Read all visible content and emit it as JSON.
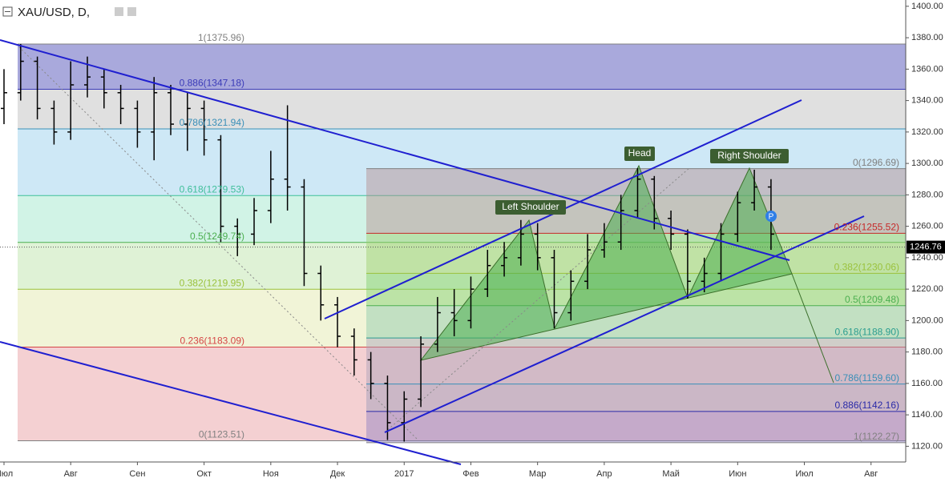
{
  "chart_data": {
    "type": "ohlc",
    "title": "XAU/USD, D,",
    "color": "#000000",
    "x": [
      0,
      0.25,
      0.5,
      0.75,
      1,
      1.25,
      1.5,
      1.75,
      2,
      2.25,
      2.5,
      2.75,
      3,
      3.25,
      3.5,
      3.75,
      4,
      4.25,
      4.5,
      4.75,
      5,
      5.25,
      5.5,
      5.75,
      6,
      6.25,
      6.5,
      6.75,
      7,
      7.25,
      7.5,
      7.75,
      8,
      8.25,
      8.5,
      8.75,
      9,
      9.25,
      9.5,
      9.75,
      10,
      10.25,
      10.5,
      10.75,
      11,
      11.25,
      11.5
    ],
    "open": [
      1335,
      1345,
      1365,
      1335,
      1320,
      1350,
      1355,
      1345,
      1335,
      1320,
      1345,
      1325,
      1335,
      1315,
      1260,
      1255,
      1270,
      1290,
      1285,
      1230,
      1210,
      1190,
      1175,
      1160,
      1135,
      1150,
      1185,
      1205,
      1200,
      1220,
      1235,
      1240,
      1255,
      1240,
      1205,
      1225,
      1245,
      1250,
      1270,
      1290,
      1265,
      1255,
      1225,
      1230,
      1255,
      1275,
      1285
    ],
    "high": [
      1360,
      1376,
      1368,
      1340,
      1365,
      1368,
      1360,
      1350,
      1340,
      1355,
      1350,
      1345,
      1340,
      1318,
      1265,
      1278,
      1308,
      1337,
      1290,
      1235,
      1215,
      1195,
      1180,
      1165,
      1155,
      1190,
      1215,
      1220,
      1228,
      1245,
      1250,
      1264,
      1262,
      1245,
      1232,
      1255,
      1262,
      1280,
      1297,
      1292,
      1270,
      1258,
      1240,
      1262,
      1282,
      1296,
      1290
    ],
    "low": [
      1325,
      1340,
      1328,
      1312,
      1315,
      1342,
      1335,
      1325,
      1310,
      1302,
      1318,
      1308,
      1305,
      1250,
      1241,
      1248,
      1262,
      1270,
      1222,
      1200,
      1183,
      1165,
      1150,
      1124,
      1123,
      1145,
      1180,
      1190,
      1195,
      1215,
      1228,
      1235,
      1232,
      1195,
      1200,
      1220,
      1240,
      1245,
      1265,
      1258,
      1245,
      1214,
      1218,
      1225,
      1250,
      1270,
      1245
    ],
    "close": [
      1345,
      1365,
      1335,
      1320,
      1350,
      1355,
      1345,
      1335,
      1320,
      1345,
      1325,
      1335,
      1315,
      1260,
      1255,
      1270,
      1290,
      1285,
      1230,
      1210,
      1190,
      1175,
      1160,
      1135,
      1150,
      1185,
      1205,
      1200,
      1220,
      1235,
      1240,
      1255,
      1240,
      1205,
      1225,
      1245,
      1250,
      1270,
      1290,
      1265,
      1255,
      1225,
      1230,
      1255,
      1275,
      1285,
      1255
    ],
    "last_price": 1246.76,
    "xlim": [
      -0.06,
      13.52
    ],
    "xticks": [
      {
        "value": 0,
        "label": "Июл"
      },
      {
        "value": 1,
        "label": "Авг"
      },
      {
        "value": 2,
        "label": "Сен"
      },
      {
        "value": 3,
        "label": "Окт"
      },
      {
        "value": 4,
        "label": "Ноя"
      },
      {
        "value": 5,
        "label": "Дек"
      },
      {
        "value": 6,
        "label": "2017"
      },
      {
        "value": 7,
        "label": "Фев"
      },
      {
        "value": 8,
        "label": "Мар"
      },
      {
        "value": 9,
        "label": "Апр"
      },
      {
        "value": 10,
        "label": "Май"
      },
      {
        "value": 11,
        "label": "Июн"
      },
      {
        "value": 12,
        "label": "Июл"
      },
      {
        "value": 13,
        "label": "Авг"
      }
    ],
    "ylim": [
      1110,
      1404
    ],
    "yticks": [
      {
        "value": 1120,
        "label": "1120.00"
      },
      {
        "value": 1140,
        "label": "1140.00"
      },
      {
        "value": 1160,
        "label": "1160.00"
      },
      {
        "value": 1180,
        "label": "1180.00"
      },
      {
        "value": 1200,
        "label": "1200.00"
      },
      {
        "value": 1220,
        "label": "1220.00"
      },
      {
        "value": 1240,
        "label": "1240.00"
      },
      {
        "value": 1260,
        "label": "1260.00"
      },
      {
        "value": 1280,
        "label": "1280.00"
      },
      {
        "value": 1300,
        "label": "1300.00"
      },
      {
        "value": 1320,
        "label": "1320.00"
      },
      {
        "value": 1340,
        "label": "1340.00"
      },
      {
        "value": 1360,
        "label": "1360.00"
      },
      {
        "value": 1380,
        "label": "1380.00"
      },
      {
        "value": 1400,
        "label": "1400.00"
      }
    ],
    "fib_left": {
      "levels": [
        {
          "value": 1375.96,
          "label": "1(1375.96)"
        },
        {
          "value": 1347.18,
          "label": "0.886(1347.18)"
        },
        {
          "value": 1321.94,
          "label": "0.786(1321.94)"
        },
        {
          "value": 1279.53,
          "label": "0.618(1279.53)"
        },
        {
          "value": 1249.74,
          "label": "0.5(1249.74)"
        },
        {
          "value": 1219.95,
          "label": "0.382(1219.95)"
        },
        {
          "value": 1183.09,
          "label": "0.236(1183.09)"
        },
        {
          "value": 1123.51,
          "label": "0(1123.51)"
        }
      ],
      "line_colors": [
        "#808080",
        "#3b3bb8",
        "#3a8fb8",
        "#3fbf9a",
        "#4caf50",
        "#9ac23c",
        "#d64545",
        "#808080"
      ],
      "band_colors": [
        "#9a9ad6",
        "#dadada",
        "#c6e4f4",
        "#c9f1e2",
        "#d9f0cf",
        "#eef2d0",
        "#f2c8ca"
      ]
    },
    "fib_right": {
      "levels": [
        {
          "value": 1296.69,
          "label": "0(1296.69)"
        },
        {
          "value": 1255.52,
          "label": "0.236(1255.52)"
        },
        {
          "value": 1230.06,
          "label": "0.382(1230.06)"
        },
        {
          "value": 1209.48,
          "label": "0.5(1209.48)"
        },
        {
          "value": 1188.9,
          "label": "0.618(1188.90)"
        },
        {
          "value": 1159.6,
          "label": "0.786(1159.60)"
        },
        {
          "value": 1142.16,
          "label": "0.886(1142.16)"
        },
        {
          "value": 1122.27,
          "label": "1(1122.27)"
        }
      ],
      "line_colors": [
        "#808080",
        "#c62828",
        "#9ac23c",
        "#4caf50",
        "#2a9d8f",
        "#3a8fb8",
        "#2a2aa8",
        "#808080"
      ],
      "band_colors": [
        "#b48c8c",
        "#9ccf6a",
        "#7ccf6a",
        "#8ac8a8",
        "#a8a0b8",
        "#9898b8",
        "#8c7cc0"
      ]
    },
    "pattern_labels": [
      "Left Shoulder",
      "Head",
      "Right Shoulder"
    ],
    "marker": "P"
  }
}
